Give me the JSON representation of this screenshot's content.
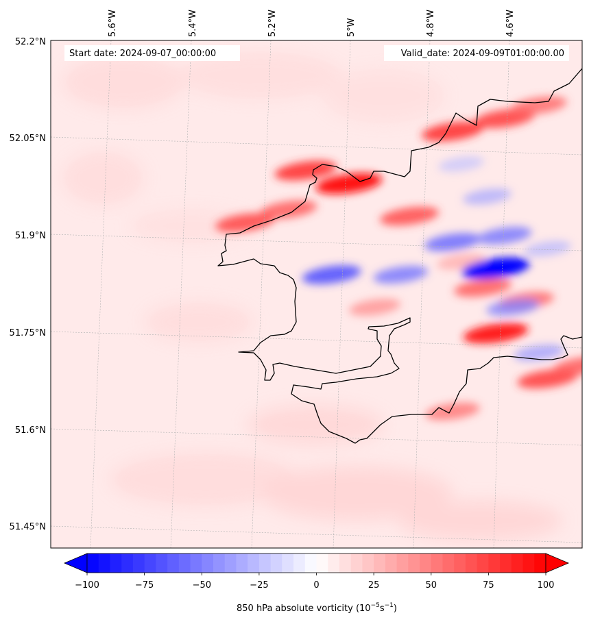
{
  "map": {
    "start_label": "Start date: 2024-09-07_00:00:00",
    "valid_label": "Valid_date: 2024-09-09T01:00:00.00",
    "lon_labels": [
      "5.6°W",
      "5.4°W",
      "5.2°W",
      "5°W",
      "4.8°W",
      "4.6°W"
    ],
    "lat_labels": [
      "52.2°N",
      "52.05°N",
      "51.9°N",
      "51.75°N",
      "51.6°N",
      "51.45°N"
    ]
  },
  "colorbar": {
    "label_text": "850 hPa absolute vorticity (10",
    "unit_exp1": "−5",
    "unit_mid": "s",
    "unit_exp2": "−1",
    "unit_close": ")",
    "ticks": [
      "−100",
      "−75",
      "−50",
      "−25",
      "0",
      "25",
      "50",
      "75",
      "100"
    ],
    "min": -100,
    "max": 100,
    "colors": {
      "negative": "#0000ff",
      "neutral": "#ffffff",
      "positive": "#ff0000"
    }
  },
  "chart_data": {
    "type": "heatmap",
    "title": "",
    "variable": "850 hPa absolute vorticity",
    "units": "10^-5 s^-1",
    "colormap": "bwr",
    "vmin": -100,
    "vmax": 100,
    "xlim": [
      -5.75,
      -4.52
    ],
    "ylim": [
      51.42,
      52.2
    ],
    "x_ticks": [
      -5.6,
      -5.4,
      -5.2,
      -5.0,
      -4.8,
      -4.6
    ],
    "y_ticks": [
      52.2,
      52.05,
      51.9,
      51.75,
      51.6,
      51.45
    ],
    "background_value": 8,
    "features": [
      {
        "lon": -5.06,
        "lat": 51.98,
        "value": 95
      },
      {
        "lon": -5.16,
        "lat": 52.0,
        "value": 80
      },
      {
        "lon": -5.3,
        "lat": 51.92,
        "value": 72
      },
      {
        "lon": -5.2,
        "lat": 51.94,
        "value": 65
      },
      {
        "lon": -4.92,
        "lat": 51.93,
        "value": 70
      },
      {
        "lon": -4.82,
        "lat": 52.06,
        "value": 80
      },
      {
        "lon": -4.7,
        "lat": 52.08,
        "value": 75
      },
      {
        "lon": -4.62,
        "lat": 52.1,
        "value": 60
      },
      {
        "lon": -4.72,
        "lat": 51.75,
        "value": 90
      },
      {
        "lon": -4.75,
        "lat": 51.82,
        "value": 65
      },
      {
        "lon": -4.65,
        "lat": 51.8,
        "value": 60
      },
      {
        "lon": -4.6,
        "lat": 51.68,
        "value": 75
      },
      {
        "lon": -4.82,
        "lat": 51.63,
        "value": 55
      },
      {
        "lon": -4.52,
        "lat": 51.7,
        "value": 65
      },
      {
        "lon": -5.0,
        "lat": 51.79,
        "value": 45
      },
      {
        "lon": -4.8,
        "lat": 51.86,
        "value": 35
      },
      {
        "lon": -4.72,
        "lat": 51.85,
        "value": -100
      },
      {
        "lon": -5.1,
        "lat": 51.84,
        "value": -70
      },
      {
        "lon": -4.94,
        "lat": 51.84,
        "value": -55
      },
      {
        "lon": -4.82,
        "lat": 51.89,
        "value": -60
      },
      {
        "lon": -4.7,
        "lat": 51.9,
        "value": -55
      },
      {
        "lon": -4.68,
        "lat": 51.79,
        "value": -50
      },
      {
        "lon": -4.62,
        "lat": 51.72,
        "value": -40
      },
      {
        "lon": -4.74,
        "lat": 51.96,
        "value": -35
      },
      {
        "lon": -4.8,
        "lat": 52.01,
        "value": -25
      },
      {
        "lon": -4.6,
        "lat": 51.88,
        "value": -30
      }
    ]
  }
}
